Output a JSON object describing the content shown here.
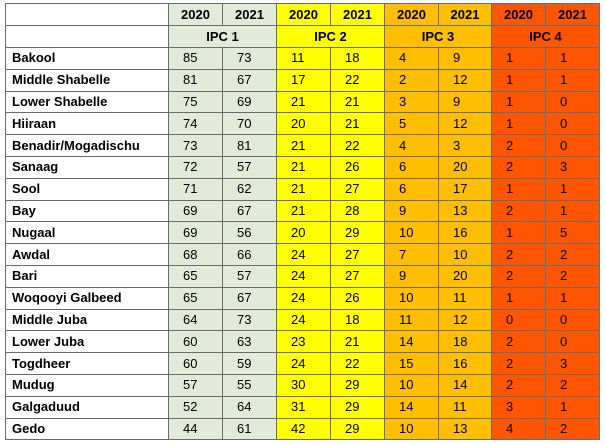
{
  "table": {
    "groups": [
      {
        "label": "IPC 1",
        "years": [
          "2020",
          "2021"
        ]
      },
      {
        "label": "IPC 2",
        "years": [
          "2020",
          "2021"
        ]
      },
      {
        "label": "IPC 3",
        "years": [
          "2020",
          "2021"
        ]
      },
      {
        "label": "IPC 4",
        "years": [
          "2020",
          "2021"
        ]
      }
    ],
    "rows": [
      {
        "region": "Bakool",
        "values": [
          85,
          73,
          11,
          18,
          4,
          9,
          1,
          1
        ]
      },
      {
        "region": "Middle Shabelle",
        "values": [
          81,
          67,
          17,
          22,
          2,
          12,
          1,
          1
        ]
      },
      {
        "region": "Lower Shabelle",
        "values": [
          75,
          69,
          21,
          21,
          3,
          9,
          1,
          0
        ]
      },
      {
        "region": "Hiiraan",
        "values": [
          74,
          70,
          20,
          21,
          5,
          12,
          1,
          0
        ]
      },
      {
        "region": "Benadir/Mogadischu",
        "values": [
          73,
          81,
          21,
          22,
          4,
          3,
          2,
          0
        ]
      },
      {
        "region": "Sanaag",
        "values": [
          72,
          57,
          21,
          26,
          6,
          20,
          2,
          3
        ]
      },
      {
        "region": "Sool",
        "values": [
          71,
          62,
          21,
          27,
          6,
          17,
          1,
          1
        ]
      },
      {
        "region": "Bay",
        "values": [
          69,
          67,
          21,
          28,
          9,
          13,
          2,
          1
        ]
      },
      {
        "region": "Nugaal",
        "values": [
          69,
          56,
          20,
          29,
          10,
          16,
          1,
          5
        ]
      },
      {
        "region": "Awdal",
        "values": [
          68,
          66,
          24,
          27,
          7,
          10,
          2,
          2
        ]
      },
      {
        "region": "Bari",
        "values": [
          65,
          57,
          24,
          27,
          9,
          20,
          2,
          2
        ]
      },
      {
        "region": "Woqooyi Galbeed",
        "values": [
          65,
          67,
          24,
          26,
          10,
          11,
          1,
          1
        ]
      },
      {
        "region": "Middle Juba",
        "values": [
          64,
          73,
          24,
          18,
          11,
          12,
          0,
          0
        ]
      },
      {
        "region": "Lower Juba",
        "values": [
          60,
          63,
          23,
          21,
          14,
          18,
          2,
          0
        ]
      },
      {
        "region": "Togdheer",
        "values": [
          60,
          59,
          24,
          22,
          15,
          16,
          2,
          3
        ]
      },
      {
        "region": "Mudug",
        "values": [
          57,
          55,
          30,
          29,
          10,
          14,
          2,
          2
        ]
      },
      {
        "region": "Galgaduud",
        "values": [
          52,
          64,
          31,
          29,
          14,
          11,
          3,
          1
        ]
      },
      {
        "region": "Gedo",
        "values": [
          44,
          61,
          42,
          29,
          10,
          13,
          4,
          2
        ]
      }
    ]
  }
}
